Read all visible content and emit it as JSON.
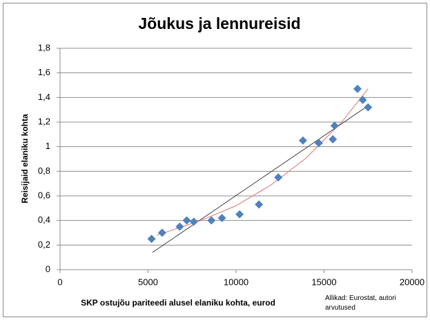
{
  "chart_data": {
    "type": "scatter",
    "title": "Jõukus ja lennureisid",
    "x_label": "SKP ostujõu pariteedi alusel elaniku kohta, eurod",
    "y_label": "Reisijaid elaniku kohta",
    "source": "Allikad: Eurostat, autori arvutused",
    "xlim": [
      0,
      20000
    ],
    "xticks": [
      0,
      5000,
      10000,
      15000,
      20000
    ],
    "ylim": [
      0,
      1.8
    ],
    "yticks": [
      0,
      {
        "value": 0.2,
        "label": "0,2"
      },
      {
        "value": 0.4,
        "label": "0,4"
      },
      {
        "value": 0.6,
        "label": "0,6"
      },
      {
        "value": 0.8,
        "label": "0,8"
      },
      1,
      {
        "value": 1.2,
        "label": "1,2"
      },
      {
        "value": 1.4,
        "label": "1,4"
      },
      {
        "value": 1.6,
        "label": "1,6"
      },
      {
        "value": 1.8,
        "label": "1,8"
      }
    ],
    "grid": true,
    "x": [
      5200,
      5800,
      6800,
      7200,
      7600,
      8600,
      9200,
      10200,
      11300,
      12400,
      13800,
      14700,
      15500,
      15600,
      16900,
      17200,
      17500
    ],
    "values": [
      0.25,
      0.3,
      0.35,
      0.4,
      0.39,
      0.4,
      0.42,
      0.45,
      0.53,
      0.75,
      1.05,
      1.03,
      1.06,
      1.17,
      1.47,
      1.38,
      1.32
    ],
    "color": "#4f81bd",
    "trendlines": [
      {
        "color": "#404040",
        "x": [
          5250,
          17370
        ],
        "values": [
          0.14,
          1.32
        ]
      },
      {
        "color": "#e07070",
        "x": [
          5500,
          8000,
          10000,
          12000,
          14000,
          16000,
          17500
        ],
        "values": [
          0.28,
          0.4,
          0.52,
          0.69,
          0.91,
          1.2,
          1.47
        ]
      }
    ]
  }
}
